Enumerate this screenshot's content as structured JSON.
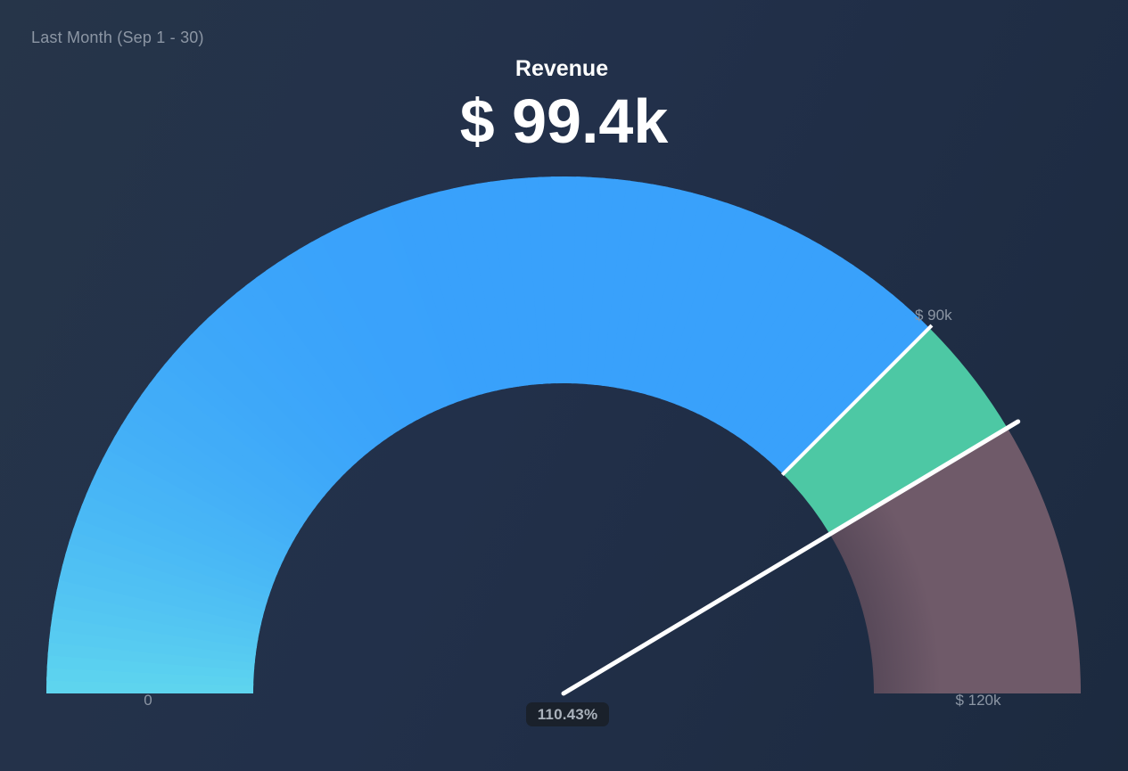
{
  "header": {
    "period_label": "Last Month (Sep 1 - 30)",
    "title": "Revenue",
    "value_display": "$ 99.4k"
  },
  "chart_data": {
    "type": "gauge",
    "title": "Revenue",
    "unit": "$",
    "min": 0,
    "max": 120000,
    "target": 90000,
    "value": 99400,
    "value_display": "$ 99.4k",
    "percent_of_target_display": "110.43%",
    "start_angle_deg": 180,
    "end_angle_deg": 0,
    "ticks": [
      {
        "value": 0,
        "label": "0"
      },
      {
        "value": 90000,
        "label": "$ 90k"
      },
      {
        "value": 120000,
        "label": "$ 120k"
      }
    ],
    "segments": [
      {
        "name": "value-below-target",
        "from": 0,
        "to": 90000,
        "gradient_main": "#39A1FB",
        "gradient_low_end": "#5FD6EE"
      },
      {
        "name": "value-above-target",
        "from": 90000,
        "to": 99400,
        "color": "#4DC8A4"
      },
      {
        "name": "remainder-to-max",
        "from": 99400,
        "to": 120000,
        "color": "#6F5A69",
        "inner_shade": "#584959"
      }
    ],
    "target_tick_color": "#FFFFFF",
    "needle_color": "#FFFFFF"
  },
  "colors": {
    "background_start": "#263549",
    "background_end": "#1C2A3F",
    "label_gray": "#8C96A4",
    "badge_background": "#1A212B",
    "badge_text": "#AAB2BC"
  }
}
